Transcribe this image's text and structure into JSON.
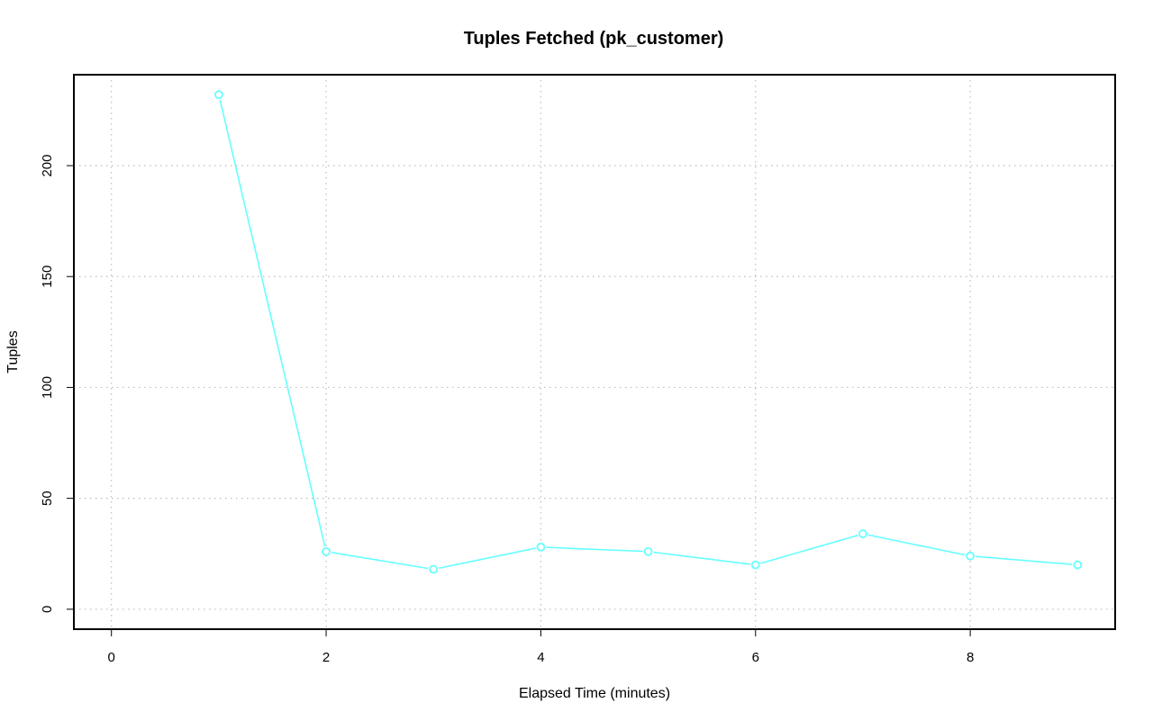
{
  "chart_data": {
    "type": "line",
    "title": "Tuples Fetched (pk_customer)",
    "xlabel": "Elapsed Time (minutes)",
    "ylabel": "Tuples",
    "xlim": [
      -0.35,
      9.35
    ],
    "ylim": [
      -9,
      241
    ],
    "xticks": [
      0,
      2,
      4,
      6,
      8
    ],
    "yticks": [
      0,
      50,
      100,
      150,
      200
    ],
    "grid": true,
    "series": [
      {
        "color": "#66ffff",
        "marker": "open-circle",
        "x": [
          1,
          2,
          3,
          4,
          5,
          6,
          7,
          8,
          9
        ],
        "y": [
          232,
          26,
          18,
          28,
          26,
          20,
          34,
          24,
          20
        ]
      }
    ]
  }
}
